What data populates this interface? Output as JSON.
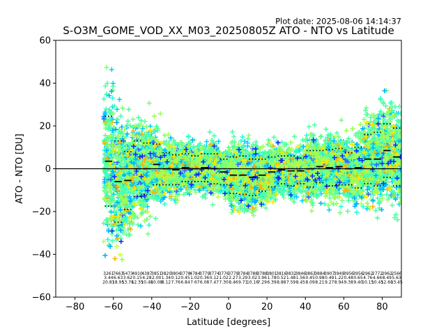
{
  "plot_date": "Plot date: 2025-08-06 14:14:37",
  "chart_data": {
    "type": "scatter",
    "title": "S-O3M_GOME_VOD_XX_M03_20250805Z ATO - NTO vs Latitude",
    "xlabel": "Latitude [degrees]",
    "ylabel": "ATO - NTO [DU]",
    "xlim": [
      -90,
      90
    ],
    "ylim": [
      -60,
      60
    ],
    "xticks": [
      -80,
      -60,
      -40,
      -20,
      0,
      20,
      40,
      60,
      80
    ],
    "yticks": [
      -60,
      -40,
      -20,
      0,
      20,
      40,
      60
    ],
    "zero_line": 0,
    "bin_width": 5,
    "bin_centers": [
      -62.5,
      -57.5,
      -52.5,
      -47.5,
      -42.5,
      -37.5,
      -32.5,
      -27.5,
      -22.5,
      -17.5,
      -12.5,
      -7.5,
      -2.5,
      2.5,
      7.5,
      12.5,
      17.5,
      22.5,
      27.5,
      32.5,
      37.5,
      42.5,
      47.5,
      52.5,
      57.5,
      62.5,
      67.5,
      72.5,
      77.5,
      82.5,
      87.5
    ],
    "bin_mean": [
      3.5,
      -6,
      -5.5,
      0,
      0,
      2,
      0,
      -0.5,
      0.5,
      0,
      0.5,
      0,
      -1.5,
      -3,
      -3,
      -4,
      -3,
      -1.5,
      -0.5,
      -1,
      -1,
      0,
      1,
      0.5,
      1,
      0,
      0.5,
      4.5,
      4.5,
      8.5,
      5.5
    ],
    "bin_std": [
      21,
      19,
      13.5,
      13,
      12,
      9.5,
      7.5,
      7,
      6.5,
      6,
      6.5,
      7,
      6,
      8.5,
      9,
      8.5,
      7.5,
      7,
      6.5,
      7,
      6,
      8.5,
      7.5,
      8.5,
      8.5,
      7.5,
      9.5,
      11.5,
      12.5,
      12.5,
      13.5
    ],
    "bin_counts": [
      "3261",
      "7663",
      "5473",
      "4910",
      "4387",
      "3851",
      "3820",
      "3804",
      "3778",
      "4784",
      "3779",
      "3774",
      "3776",
      "3779",
      "3784",
      "3788",
      "3788",
      "3801",
      "3816",
      "3832",
      "3846",
      "3863",
      "3884",
      "3907",
      "3949",
      "3956",
      "3956",
      "2962",
      "2772",
      "2962",
      "2566"
    ],
    "bin_count_means": [
      "3.44",
      "6.63",
      "3.62",
      "0.15",
      "4.28",
      "2.00",
      "1.34",
      "0.12",
      "0.45",
      "1.02",
      "0.36",
      "0.12",
      "1.02",
      "2.27",
      "3.29",
      "3.02",
      "3.96",
      "1.78",
      "0.52",
      "1.48",
      "1.56",
      "0.45",
      "0.98",
      "0.49",
      "1.22",
      "0.48",
      "0.65",
      "4.76",
      "4.66",
      "8.49",
      "5.63"
    ],
    "bin_count_stds": [
      "20.81",
      "18.95",
      "13.76",
      "12.35",
      "10.48",
      "10.08",
      "8.12",
      "7.76",
      "6.84",
      "7.67",
      "6.08",
      "7.47",
      "7.30",
      "8.46",
      "9.71",
      "10.16",
      "7.29",
      "6.39",
      "8.88",
      "7.59",
      "8.45",
      "8.09",
      "8.21",
      "9.27",
      "8.94",
      "9.38",
      "9.40",
      "10.15",
      "10.45",
      "12.60",
      "13.45"
    ]
  }
}
